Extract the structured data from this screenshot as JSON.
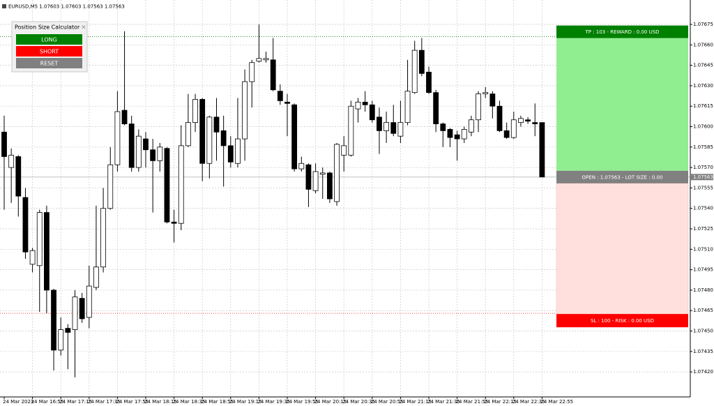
{
  "header": {
    "symbol_info": "EURUSD,M5  1.07603 1.07603 1.07563 1.07563"
  },
  "panel": {
    "title": "Position Size Calculator",
    "close": "×",
    "buttons": [
      "LONG",
      "SHORT",
      "RESET"
    ]
  },
  "chart_data": {
    "type": "candlestick",
    "x": [
      "24 Mar 2023",
      null,
      null,
      null,
      "24 Mar 16:55",
      null,
      null,
      null,
      "24 Mar 17:15",
      null,
      null,
      null,
      "24 Mar 17:35",
      null,
      null,
      null,
      "24 Mar 17:55",
      null,
      null,
      null,
      "24 Mar 18:15",
      null,
      null,
      null,
      "24 Mar 18:35",
      null,
      null,
      null,
      "24 Mar 18:55",
      null,
      null,
      null,
      "24 Mar 19:15",
      null,
      null,
      null,
      "24 Mar 19:35",
      null,
      null,
      null,
      "24 Mar 19:55",
      null,
      null,
      null,
      "24 Mar 20:15",
      null,
      null,
      null,
      "24 Mar 20:35",
      null,
      null,
      null,
      "24 Mar 20:55",
      null,
      null,
      null,
      "24 Mar 21:15",
      null,
      null,
      null,
      "24 Mar 21:35",
      null,
      null,
      null,
      "24 Mar 21:55",
      null,
      null,
      null,
      "24 Mar 22:15",
      null,
      null,
      null,
      "24 Mar 22:35",
      null,
      null,
      null,
      "24 Mar 22:55"
    ],
    "open": [
      1.07596,
      1.0757,
      1.07578,
      1.07548,
      1.07499,
      1.07498,
      1.07537,
      1.0748,
      1.07436,
      1.07452,
      1.07451,
      1.07474,
      1.0746,
      1.07482,
      1.07497,
      1.0754,
      1.07572,
      1.07612,
      1.07602,
      1.0757,
      1.07591,
      1.07583,
      1.07575,
      1.07584,
      1.0753,
      1.07529,
      1.07586,
      1.07603,
      1.0762,
      1.07573,
      1.07607,
      1.07597,
      1.07586,
      1.07573,
      1.07591,
      1.07633,
      1.07648,
      1.07649,
      1.07649,
      1.07626,
      1.07618,
      1.07616,
      1.07569,
      1.07572,
      1.07553,
      1.07565,
      1.07566,
      1.07545,
      1.07579,
      1.07579,
      1.07613,
      1.07618,
      1.07616,
      1.07607,
      1.07597,
      1.07603,
      1.07593,
      1.07603,
      1.07625,
      1.07656,
      1.0764,
      1.07625,
      1.07602,
      1.07598,
      1.07594,
      1.07591,
      1.07596,
      1.07605,
      1.07624,
      1.07624,
      1.07615,
      1.07597,
      1.07592,
      1.07603,
      1.07605,
      1.07603,
      1.07603
    ],
    "high": [
      1.07608,
      1.07584,
      1.07579,
      1.07555,
      1.07511,
      1.07539,
      1.07542,
      1.07481,
      1.0746,
      1.07455,
      1.0748,
      1.07478,
      1.07498,
      1.07542,
      1.07555,
      1.07585,
      1.07626,
      1.0767,
      1.07608,
      1.07598,
      1.07596,
      1.07591,
      1.07588,
      1.07585,
      1.07539,
      1.07601,
      1.07624,
      1.07624,
      1.07621,
      1.07608,
      1.07621,
      1.07608,
      1.07593,
      1.07621,
      1.07642,
      1.07649,
      1.07675,
      1.07655,
      1.07665,
      1.07631,
      1.07624,
      1.07617,
      1.07578,
      1.07573,
      1.07573,
      1.0757,
      1.07567,
      1.07588,
      1.07593,
      1.07619,
      1.07621,
      1.07626,
      1.07619,
      1.07614,
      1.07611,
      1.07616,
      1.07619,
      1.07649,
      1.07663,
      1.07665,
      1.07644,
      1.07627,
      1.07603,
      1.07599,
      1.07597,
      1.076,
      1.07608,
      1.07626,
      1.07629,
      1.07626,
      1.07619,
      1.07603,
      1.07611,
      1.07608,
      1.07607,
      1.07617,
      1.07603
    ],
    "low": [
      1.07539,
      1.07544,
      1.07534,
      1.07503,
      1.07493,
      1.07464,
      1.07463,
      1.07421,
      1.07432,
      1.07422,
      1.07416,
      1.07456,
      1.07452,
      1.0748,
      1.07493,
      1.07539,
      1.07567,
      1.07601,
      1.07567,
      1.07567,
      1.0757,
      1.07537,
      1.07567,
      1.07529,
      1.07515,
      1.07524,
      1.07585,
      1.07596,
      1.0756,
      1.07562,
      1.07575,
      1.07556,
      1.0757,
      1.0757,
      1.07575,
      1.07614,
      1.07647,
      1.07647,
      1.07626,
      1.07616,
      1.07593,
      1.07567,
      1.07567,
      1.07541,
      1.07551,
      1.07547,
      1.07544,
      1.07542,
      1.07567,
      1.07578,
      1.07603,
      1.07611,
      1.07603,
      1.0758,
      1.07588,
      1.07593,
      1.07588,
      1.07601,
      1.07624,
      1.07637,
      1.07624,
      1.07596,
      1.07585,
      1.07585,
      1.07575,
      1.07588,
      1.07593,
      1.07596,
      1.07621,
      1.07606,
      1.07596,
      1.07591,
      1.07591,
      1.076,
      1.07602,
      1.07593,
      1.07563
    ],
    "close": [
      1.07578,
      1.07579,
      1.07549,
      1.07508,
      1.07509,
      1.07537,
      1.0748,
      1.07436,
      1.07451,
      1.07449,
      1.07475,
      1.07459,
      1.07483,
      1.07497,
      1.0754,
      1.07572,
      1.07611,
      1.07602,
      1.0757,
      1.07593,
      1.07583,
      1.07575,
      1.07585,
      1.0753,
      1.07529,
      1.07586,
      1.07603,
      1.0762,
      1.07573,
      1.07607,
      1.07596,
      1.07586,
      1.07574,
      1.07591,
      1.07633,
      1.07647,
      1.0765,
      1.0765,
      1.07627,
      1.07619,
      1.07617,
      1.07569,
      1.07573,
      1.07554,
      1.07567,
      1.07566,
      1.07547,
      1.07587,
      1.07586,
      1.07615,
      1.07618,
      1.07616,
      1.07605,
      1.07597,
      1.07603,
      1.07595,
      1.07603,
      1.07626,
      1.07656,
      1.07639,
      1.07625,
      1.07602,
      1.07597,
      1.07592,
      1.07591,
      1.07598,
      1.07605,
      1.07624,
      1.07625,
      1.07615,
      1.07597,
      1.07592,
      1.07605,
      1.07606,
      1.07604,
      1.07602,
      1.07563
    ],
    "up_color": "#ffffff",
    "down_color": "#000000",
    "ylim": [
      1.07402,
      1.0769
    ],
    "yticks": [
      {
        "value": 1.0742,
        "label": "1.07420"
      },
      {
        "value": 1.07435,
        "label": "1.07435"
      },
      {
        "value": 1.0745,
        "label": "1.07450"
      },
      {
        "value": 1.07465,
        "label": "1.07465"
      },
      {
        "value": 1.0748,
        "label": "1.07480"
      },
      {
        "value": 1.07495,
        "label": "1.07495"
      },
      {
        "value": 1.0751,
        "label": "1.07510"
      },
      {
        "value": 1.07525,
        "label": "1.07525"
      },
      {
        "value": 1.0754,
        "label": "1.07540"
      },
      {
        "value": 1.07555,
        "label": "1.07555"
      },
      {
        "value": 1.0757,
        "label": "1.07570"
      },
      {
        "value": 1.07585,
        "label": "1.07585"
      },
      {
        "value": 1.076,
        "label": "1.07600"
      },
      {
        "value": 1.07615,
        "label": "1.07615"
      },
      {
        "value": 1.0763,
        "label": "1.07630"
      },
      {
        "value": 1.07645,
        "label": "1.07645"
      },
      {
        "value": 1.0766,
        "label": "1.07660"
      },
      {
        "value": 1.07675,
        "label": "1.07675"
      }
    ],
    "grid": true,
    "last_price": {
      "value": 1.07563,
      "label": "1.07563"
    },
    "levels": [
      {
        "value": 1.07666,
        "label": "TP : 103 - REWARD : 0.00 USD",
        "color": "#008000",
        "zone_color": "#90ee90"
      },
      {
        "value": 1.07563,
        "label": "OPEN : 1.07563 - LOT SIZE : 0.00",
        "color": "#808080"
      },
      {
        "value": 1.07463,
        "label": "SL : 100 - RISK : 0.00 USD",
        "color": "#ff0000",
        "zone_color": "#ffe0dc"
      }
    ]
  }
}
